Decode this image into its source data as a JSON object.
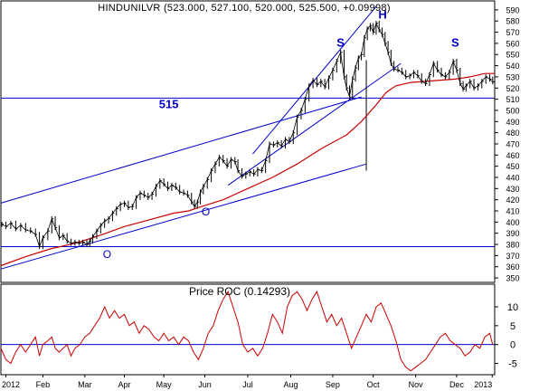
{
  "chart_data": {
    "type": "line",
    "title": "HINDUNILVR (523.000, 527.100, 520.000, 525.500, +0.09998)",
    "price_panel": {
      "ylim": [
        346,
        598
      ],
      "y_ticks": [
        350,
        360,
        370,
        380,
        390,
        400,
        410,
        420,
        430,
        440,
        450,
        460,
        470,
        480,
        490,
        500,
        510,
        520,
        530,
        540,
        550,
        560,
        570,
        580,
        590
      ],
      "close_series": [
        [
          0.2,
          398
        ],
        [
          1,
          396
        ],
        [
          2,
          399
        ],
        [
          3,
          394
        ],
        [
          4,
          397
        ],
        [
          5,
          393
        ],
        [
          6,
          392
        ],
        [
          7,
          389
        ],
        [
          7.8,
          378
        ],
        [
          8.5,
          386
        ],
        [
          9.5,
          392
        ],
        [
          10.3,
          403
        ],
        [
          11,
          395
        ],
        [
          11.8,
          386
        ],
        [
          12.6,
          388
        ],
        [
          13.4,
          383
        ],
        [
          14.2,
          381
        ],
        [
          15,
          382
        ],
        [
          15.8,
          381
        ],
        [
          16.6,
          382
        ],
        [
          17.4,
          380
        ],
        [
          18,
          383
        ],
        [
          18.6,
          387
        ],
        [
          19.4,
          392
        ],
        [
          20.2,
          397
        ],
        [
          21,
          401
        ],
        [
          21.8,
          403
        ],
        [
          22.6,
          408
        ],
        [
          23.4,
          412
        ],
        [
          24.2,
          416
        ],
        [
          25,
          417
        ],
        [
          25.8,
          413
        ],
        [
          26.6,
          414
        ],
        [
          27.4,
          422
        ],
        [
          28.2,
          426
        ],
        [
          29,
          424
        ],
        [
          29.8,
          422
        ],
        [
          30.6,
          425
        ],
        [
          31.4,
          432
        ],
        [
          32.2,
          437
        ],
        [
          33,
          434
        ],
        [
          33.8,
          430
        ],
        [
          34.6,
          433
        ],
        [
          35.4,
          431
        ],
        [
          36.2,
          427
        ],
        [
          37,
          426
        ],
        [
          37.8,
          424
        ],
        [
          38.6,
          418
        ],
        [
          39.2,
          414
        ],
        [
          39.8,
          418
        ],
        [
          40.4,
          427
        ],
        [
          41,
          432
        ],
        [
          41.8,
          438
        ],
        [
          42.6,
          446
        ],
        [
          43.4,
          452
        ],
        [
          44.2,
          458
        ],
        [
          45,
          455
        ],
        [
          45.8,
          450
        ],
        [
          46.6,
          456
        ],
        [
          47.4,
          454
        ],
        [
          48,
          446
        ],
        [
          48.8,
          441
        ],
        [
          49.6,
          443
        ],
        [
          50.4,
          445
        ],
        [
          51.2,
          443
        ],
        [
          52,
          447
        ],
        [
          52.8,
          446
        ],
        [
          53.6,
          455
        ],
        [
          54.4,
          470
        ],
        [
          55.2,
          469
        ],
        [
          56,
          471
        ],
        [
          56.8,
          468
        ],
        [
          57.6,
          474
        ],
        [
          58.4,
          472
        ],
        [
          59.2,
          480
        ],
        [
          60,
          494
        ],
        [
          60.8,
          500
        ],
        [
          61.6,
          510
        ],
        [
          62.4,
          522
        ],
        [
          63.2,
          527
        ],
        [
          64,
          523
        ],
        [
          64.8,
          526
        ],
        [
          65.6,
          521
        ],
        [
          66.4,
          529
        ],
        [
          67.2,
          536
        ],
        [
          68,
          544
        ],
        [
          68.8,
          552
        ],
        [
          69.5,
          530
        ],
        [
          70,
          520
        ],
        [
          70.6,
          512
        ],
        [
          71.2,
          528
        ],
        [
          71.8,
          538
        ],
        [
          72.4,
          547
        ],
        [
          73,
          550
        ],
        [
          73.6,
          565
        ],
        [
          74.2,
          573
        ],
        [
          74.8,
          576
        ],
        [
          75.4,
          570
        ],
        [
          76,
          578
        ],
        [
          76.6,
          572
        ],
        [
          77.2,
          568
        ],
        [
          77.8,
          560
        ],
        [
          78.4,
          552
        ],
        [
          79,
          542
        ],
        [
          79.6,
          537
        ],
        [
          80.4,
          536
        ],
        [
          81.2,
          534
        ],
        [
          82,
          530
        ],
        [
          82.8,
          531
        ],
        [
          83.6,
          534
        ],
        [
          84.4,
          531
        ],
        [
          85.2,
          526
        ],
        [
          86,
          524
        ],
        [
          86.8,
          532
        ],
        [
          87.6,
          542
        ],
        [
          88.4,
          536
        ],
        [
          89.2,
          532
        ],
        [
          90,
          530
        ],
        [
          90.8,
          534
        ],
        [
          91.6,
          544
        ],
        [
          92.3,
          536
        ],
        [
          93,
          524
        ],
        [
          93.6,
          519
        ],
        [
          94.2,
          522
        ],
        [
          95,
          526
        ],
        [
          95.8,
          520
        ],
        [
          96.6,
          522
        ],
        [
          97.4,
          526
        ],
        [
          98.2,
          530
        ],
        [
          99,
          528
        ],
        [
          99.6,
          525.5
        ]
      ],
      "moving_average": [
        [
          0,
          361
        ],
        [
          5,
          369
        ],
        [
          10,
          376
        ],
        [
          15,
          381
        ],
        [
          20,
          388
        ],
        [
          25,
          396
        ],
        [
          30,
          402
        ],
        [
          35,
          408
        ],
        [
          38,
          410
        ],
        [
          40,
          413
        ],
        [
          45,
          420
        ],
        [
          50,
          430
        ],
        [
          55,
          440
        ],
        [
          60,
          452
        ],
        [
          65,
          466
        ],
        [
          70,
          478
        ],
        [
          73,
          490
        ],
        [
          76,
          505
        ],
        [
          78,
          516
        ],
        [
          80,
          522
        ],
        [
          83,
          525
        ],
        [
          86,
          526
        ],
        [
          89,
          527
        ],
        [
          92,
          528
        ],
        [
          95,
          530
        ],
        [
          98,
          533
        ],
        [
          100,
          533
        ]
      ],
      "upper_channel_line": [
        [
          0,
          417
        ],
        [
          73,
          512
        ]
      ],
      "lower_channel_line": [
        [
          0,
          358
        ],
        [
          74,
          452
        ]
      ],
      "steep_channel_upper": [
        [
          51,
          461
        ],
        [
          76,
          593
        ]
      ],
      "steep_channel_lower": [
        [
          46,
          433
        ],
        [
          81,
          542
        ]
      ],
      "horizontal_lines": [
        511,
        378
      ],
      "event_drop_line": {
        "x": 74,
        "from": 545,
        "to": 446
      },
      "annotations": [
        {
          "text": "515",
          "x": 34,
          "y": 502
        },
        {
          "text": "S",
          "x": 68.8,
          "y": 557
        },
        {
          "text": "H",
          "x": 77.3,
          "y": 582
        },
        {
          "text": "S",
          "x": 92,
          "y": 557
        },
        {
          "text": "O",
          "x": 21.5,
          "y": 368
        },
        {
          "text": "O",
          "x": 41.5,
          "y": 406
        }
      ]
    },
    "indicator_panel": {
      "title": "Price ROC (0.14293)",
      "ylim": [
        -8,
        16
      ],
      "y_ticks": [
        -5,
        0,
        5,
        10
      ],
      "zero_line": 0,
      "series": [
        [
          0,
          -1
        ],
        [
          1,
          -4
        ],
        [
          2,
          -5
        ],
        [
          3,
          -2
        ],
        [
          4,
          0
        ],
        [
          5,
          -2
        ],
        [
          6,
          0
        ],
        [
          7,
          2
        ],
        [
          7.8,
          -3
        ],
        [
          8.5,
          0
        ],
        [
          9.5,
          1
        ],
        [
          10.3,
          2
        ],
        [
          11,
          -1
        ],
        [
          11.8,
          -2
        ],
        [
          12.6,
          -1
        ],
        [
          13.4,
          0
        ],
        [
          14.2,
          -3
        ],
        [
          15,
          -1
        ],
        [
          16,
          0
        ],
        [
          17,
          2
        ],
        [
          18,
          3
        ],
        [
          19,
          5
        ],
        [
          20,
          7
        ],
        [
          21,
          10
        ],
        [
          22,
          7
        ],
        [
          23,
          9
        ],
        [
          24,
          7
        ],
        [
          25,
          8
        ],
        [
          26,
          5
        ],
        [
          27,
          6
        ],
        [
          28,
          3
        ],
        [
          29,
          5
        ],
        [
          30,
          4
        ],
        [
          31,
          2
        ],
        [
          32,
          1
        ],
        [
          33,
          3
        ],
        [
          34,
          1
        ],
        [
          35,
          2
        ],
        [
          36,
          0
        ],
        [
          37,
          2
        ],
        [
          38,
          1
        ],
        [
          39,
          -2
        ],
        [
          40,
          -4
        ],
        [
          41,
          -1
        ],
        [
          42,
          3
        ],
        [
          43,
          5
        ],
        [
          44,
          9
        ],
        [
          45,
          12
        ],
        [
          46,
          14
        ],
        [
          47,
          10
        ],
        [
          48,
          6
        ],
        [
          49,
          0
        ],
        [
          50,
          -2
        ],
        [
          51,
          -1
        ],
        [
          52,
          -3
        ],
        [
          53,
          -1
        ],
        [
          54,
          3
        ],
        [
          55,
          8
        ],
        [
          56,
          6
        ],
        [
          57,
          3
        ],
        [
          58,
          10
        ],
        [
          59,
          13
        ],
        [
          60,
          14
        ],
        [
          61,
          12
        ],
        [
          62,
          9
        ],
        [
          63,
          12
        ],
        [
          64,
          14
        ],
        [
          65,
          10
        ],
        [
          66,
          6
        ],
        [
          67,
          8
        ],
        [
          68,
          5
        ],
        [
          69,
          7
        ],
        [
          70,
          3
        ],
        [
          71,
          -1
        ],
        [
          72,
          2
        ],
        [
          73,
          5
        ],
        [
          74,
          8
        ],
        [
          75,
          6
        ],
        [
          76,
          10
        ],
        [
          77,
          11
        ],
        [
          78,
          8
        ],
        [
          79,
          5
        ],
        [
          80,
          1
        ],
        [
          81,
          -4
        ],
        [
          82,
          -6
        ],
        [
          83,
          -7
        ],
        [
          84,
          -6
        ],
        [
          85,
          -5
        ],
        [
          86,
          -4
        ],
        [
          87,
          -2
        ],
        [
          88,
          0
        ],
        [
          89,
          2
        ],
        [
          90,
          3
        ],
        [
          91,
          1
        ],
        [
          92,
          0
        ],
        [
          93,
          -1
        ],
        [
          94,
          -3
        ],
        [
          95,
          -2
        ],
        [
          96,
          0
        ],
        [
          97,
          -1
        ],
        [
          98,
          2
        ],
        [
          99,
          3
        ],
        [
          99.6,
          0
        ]
      ]
    },
    "x_axis": {
      "labels": [
        {
          "text": "2012",
          "x": 1
        },
        {
          "text": "Feb",
          "x": 8.5
        },
        {
          "text": "Mar",
          "x": 17
        },
        {
          "text": "Apr",
          "x": 25
        },
        {
          "text": "May",
          "x": 33
        },
        {
          "text": "Jun",
          "x": 41.3
        },
        {
          "text": "Jul",
          "x": 50
        },
        {
          "text": "Aug",
          "x": 58.7
        },
        {
          "text": "Sep",
          "x": 67.2
        },
        {
          "text": "Oct",
          "x": 75.4
        },
        {
          "text": "Nov",
          "x": 84
        },
        {
          "text": "Dec",
          "x": 92.3
        },
        {
          "text": "2013",
          "x": 99.5
        }
      ]
    },
    "colors": {
      "price": "#000000",
      "moving_average": "#cc0000",
      "trend_lines": "#0000cc",
      "indicator": "#cc0000",
      "annotations": "#0000cc",
      "axis": "#000000"
    }
  }
}
